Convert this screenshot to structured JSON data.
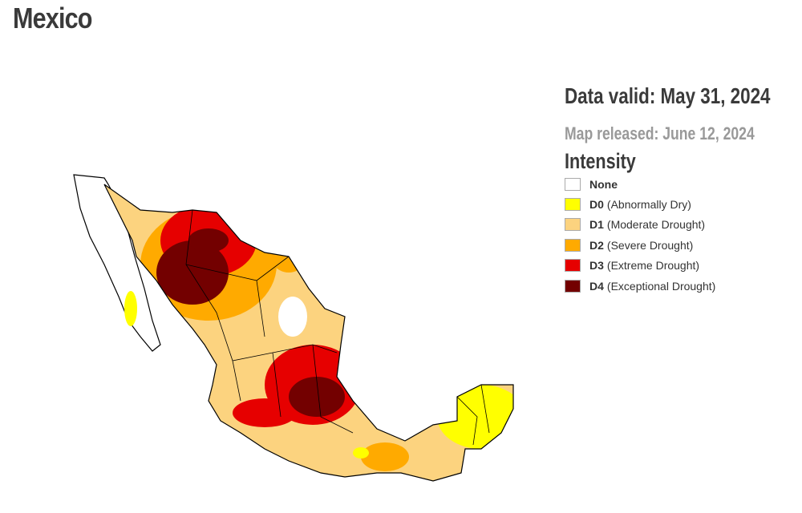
{
  "header": {
    "title": "Mexico"
  },
  "info": {
    "data_valid": "Data valid: May 31, 2024",
    "map_released": "Map released: June 12, 2024"
  },
  "legend": {
    "title": "Intensity",
    "items": [
      {
        "code": "None",
        "color": "#ffffff"
      },
      {
        "code": "D0",
        "label": "(Abnormally Dry)",
        "color": "#ffff00"
      },
      {
        "code": "D1",
        "label": "(Moderate Drought)",
        "color": "#fcd37f"
      },
      {
        "code": "D2",
        "label": "(Severe Drought)",
        "color": "#ffaa00"
      },
      {
        "code": "D3",
        "label": "(Extreme Drought)",
        "color": "#e60000"
      },
      {
        "code": "D4",
        "label": "(Exceptional Drought)",
        "color": "#730000"
      }
    ]
  }
}
